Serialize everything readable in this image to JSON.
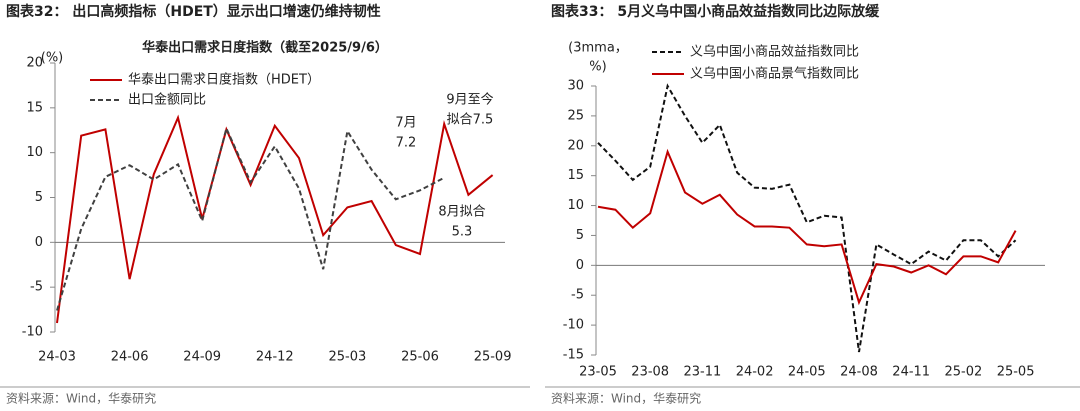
{
  "chart_data": [
    {
      "type": "line",
      "header": "图表32：  出口高频指标（HDET）显示出口增速仍维持韧性",
      "title": "华泰出口需求日度指数（截至2025/9/6）",
      "y_label": "(%)",
      "categories": [
        "24-03",
        null,
        null,
        "24-06",
        null,
        null,
        "24-09",
        null,
        null,
        "24-12",
        null,
        null,
        "25-03",
        null,
        null,
        "25-06",
        null,
        null,
        "25-09"
      ],
      "series": [
        {
          "name": "华泰出口需求日度指数（HDET）",
          "color": "#c00000",
          "dash": false,
          "values": [
            -9,
            11.9,
            12.6,
            -4.1,
            7.6,
            13.9,
            2.6,
            12.6,
            6.4,
            13,
            9.4,
            0.8,
            3.9,
            4.6,
            -0.3,
            -1.3,
            13.2,
            5.3,
            7.5
          ]
        },
        {
          "name": "出口金额同比",
          "color": "#404040",
          "dash": true,
          "values": [
            -7.6,
            1.5,
            7.3,
            8.6,
            7.0,
            8.7,
            2.4,
            12.7,
            6.7,
            10.7,
            6.0,
            -3.0,
            12.4,
            8.1,
            4.8,
            5.8,
            7.2,
            null,
            null
          ]
        }
      ],
      "annotations": [
        {
          "lines": [
            "7月",
            "7.2"
          ],
          "color": "#222222"
        },
        {
          "lines": [
            "9月至今",
            "拟合7.5"
          ],
          "color": "#c00000"
        },
        {
          "lines": [
            "8月拟合",
            "5.3"
          ],
          "color": "#c00000"
        }
      ],
      "ylim": [
        -10,
        20
      ],
      "yticks": [
        -10,
        -5,
        0,
        5,
        10,
        15,
        20
      ],
      "source": "资料来源：Wind，华泰研究"
    },
    {
      "type": "line",
      "header": "图表33：  5月义乌中国小商品效益指数同比边际放缓",
      "y_label": [
        "(3mma，",
        "%)"
      ],
      "categories": [
        "23-05",
        null,
        null,
        "23-08",
        null,
        null,
        "23-11",
        null,
        null,
        "24-02",
        null,
        null,
        "24-05",
        null,
        null,
        "24-08",
        null,
        null,
        "24-11",
        null,
        null,
        "25-02",
        null,
        null,
        "25-05"
      ],
      "series": [
        {
          "name": "义乌中国小商品效益指数同比",
          "color": "#111111",
          "dash": true,
          "values": [
            20.5,
            17.5,
            14.3,
            16.5,
            30,
            25,
            20.5,
            23.5,
            15.5,
            13,
            12.8,
            13.5,
            7.2,
            8.3,
            8.0,
            -14.5,
            3.5,
            1.8,
            0.2,
            2.3,
            0.8,
            4.2,
            4.2,
            1.5,
            4.2
          ]
        },
        {
          "name": "义乌中国小商品景气指数同比",
          "color": "#c00000",
          "dash": false,
          "values": [
            9.8,
            9.3,
            6.3,
            8.7,
            19,
            12.2,
            10.3,
            11.8,
            8.5,
            6.5,
            6.5,
            6.3,
            3.5,
            3.2,
            3.5,
            -6.2,
            0.2,
            -0.2,
            -1.2,
            0,
            -1.5,
            1.5,
            1.5,
            0.5,
            5.8
          ]
        }
      ],
      "ylim": [
        -15,
        30
      ],
      "yticks": [
        -15,
        -10,
        -5,
        0,
        5,
        10,
        15,
        20,
        25,
        30
      ],
      "source": "资料来源：Wind，华泰研究"
    }
  ]
}
